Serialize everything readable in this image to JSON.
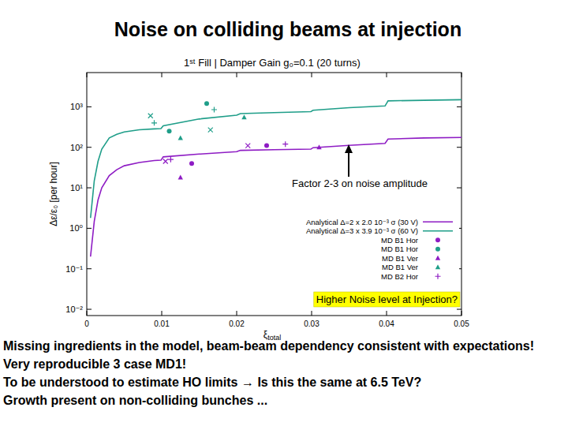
{
  "slide": {
    "title": "Noise on colliding beams at injection",
    "notes": [
      "Missing ingredients in the model, beam-beam dependency consistent with expectations!",
      "Very reproducible 3 case MD1!",
      "To be understood to estimate HO limits → Is this the same at 6.5 TeV?",
      "Growth present on non-colliding bunches ..."
    ]
  },
  "chart_data": {
    "type": "scatter",
    "title": "1ˢᵗ Fill | Damper Gain g₀=0.1 (20 turns)",
    "x_label": "ξtotal",
    "y_label": "Δε/ε₀ [per hour]",
    "xlim": [
      0,
      0.05
    ],
    "xticks": [
      0,
      0.01,
      0.02,
      0.03,
      0.04,
      0.05
    ],
    "ylim": [
      0.007,
      7000
    ],
    "yticks": [
      {
        "value": 0.01,
        "label": "10⁻²"
      },
      {
        "value": 0.1,
        "label": "10⁻¹"
      },
      {
        "value": 1,
        "label": "10⁰"
      },
      {
        "value": 10,
        "label": "10¹"
      },
      {
        "value": 100,
        "label": "10²"
      },
      {
        "value": 1000,
        "label": "10³"
      }
    ],
    "log": "y",
    "grid": false,
    "legend": "bottom-right",
    "annotations": [
      "Factor 2-3 on noise amplitude",
      "Higher Noise level at Injection?"
    ],
    "series": [
      {
        "name": "Analytical Δ=2 x 2.0 10⁻³ σ (30 V)",
        "type": "line",
        "line_style": "solid",
        "color": "#8e1cc4",
        "x": [
          0.0005,
          0.001,
          0.0015,
          0.002,
          0.003,
          0.004,
          0.005,
          0.007,
          0.009,
          0.0099,
          0.0102,
          0.015,
          0.02,
          0.0205,
          0.025,
          0.0299,
          0.0302,
          0.035,
          0.0398,
          0.0402,
          0.045,
          0.05
        ],
        "values": [
          0.2,
          1.5,
          5,
          10,
          20,
          28,
          35,
          42,
          47,
          48,
          58,
          68,
          78,
          84,
          87,
          90,
          98,
          112,
          125,
          160,
          170,
          175
        ]
      },
      {
        "name": "Analytical Δ=3 x 3.9 10⁻³ σ (60 V)",
        "type": "line",
        "line_style": "solid",
        "color": "#1f9e89",
        "x": [
          0.0005,
          0.001,
          0.0015,
          0.002,
          0.003,
          0.004,
          0.005,
          0.007,
          0.009,
          0.0099,
          0.0102,
          0.015,
          0.02,
          0.0205,
          0.025,
          0.0299,
          0.0302,
          0.035,
          0.0398,
          0.0402,
          0.045,
          0.05
        ],
        "values": [
          1.8,
          15,
          45,
          90,
          170,
          210,
          240,
          270,
          285,
          290,
          340,
          500,
          620,
          680,
          720,
          760,
          820,
          950,
          1050,
          1400,
          1450,
          1500
        ]
      },
      {
        "name": "MD B1 Hor",
        "type": "scatter",
        "marker": "circle",
        "color": "#8e1cc4",
        "x": [
          0.014,
          0.024
        ],
        "values": [
          40,
          110
        ]
      },
      {
        "name": "MD B1 Hor",
        "type": "scatter",
        "marker": "circle",
        "color": "#1f9e89",
        "x": [
          0.011,
          0.016
        ],
        "values": [
          250,
          1200
        ]
      },
      {
        "name": "MD B1 Ver",
        "type": "scatter",
        "marker": "triangle",
        "color": "#8e1cc4",
        "x": [
          0.0125,
          0.031
        ],
        "values": [
          18,
          100
        ]
      },
      {
        "name": "MD B1 Ver",
        "type": "scatter",
        "marker": "triangle",
        "color": "#1f9e89",
        "x": [
          0.0125,
          0.021
        ],
        "values": [
          170,
          550
        ]
      },
      {
        "name": "MD B2 Hor",
        "type": "scatter",
        "marker": "plus",
        "color": "#8e1cc4",
        "x": [
          0.0112,
          0.0265
        ],
        "values": [
          50,
          120
        ]
      },
      {
        "type": "scatter",
        "marker": "plus",
        "color": "#1f9e89",
        "x": [
          0.009,
          0.017
        ],
        "values": [
          400,
          850
        ]
      },
      {
        "type": "scatter",
        "marker": "cross",
        "color": "#8e1cc4",
        "x": [
          0.0105,
          0.0215
        ],
        "values": [
          45,
          110
        ]
      },
      {
        "type": "scatter",
        "marker": "cross",
        "color": "#1f9e89",
        "x": [
          0.0085,
          0.0165
        ],
        "values": [
          600,
          270
        ]
      }
    ]
  }
}
